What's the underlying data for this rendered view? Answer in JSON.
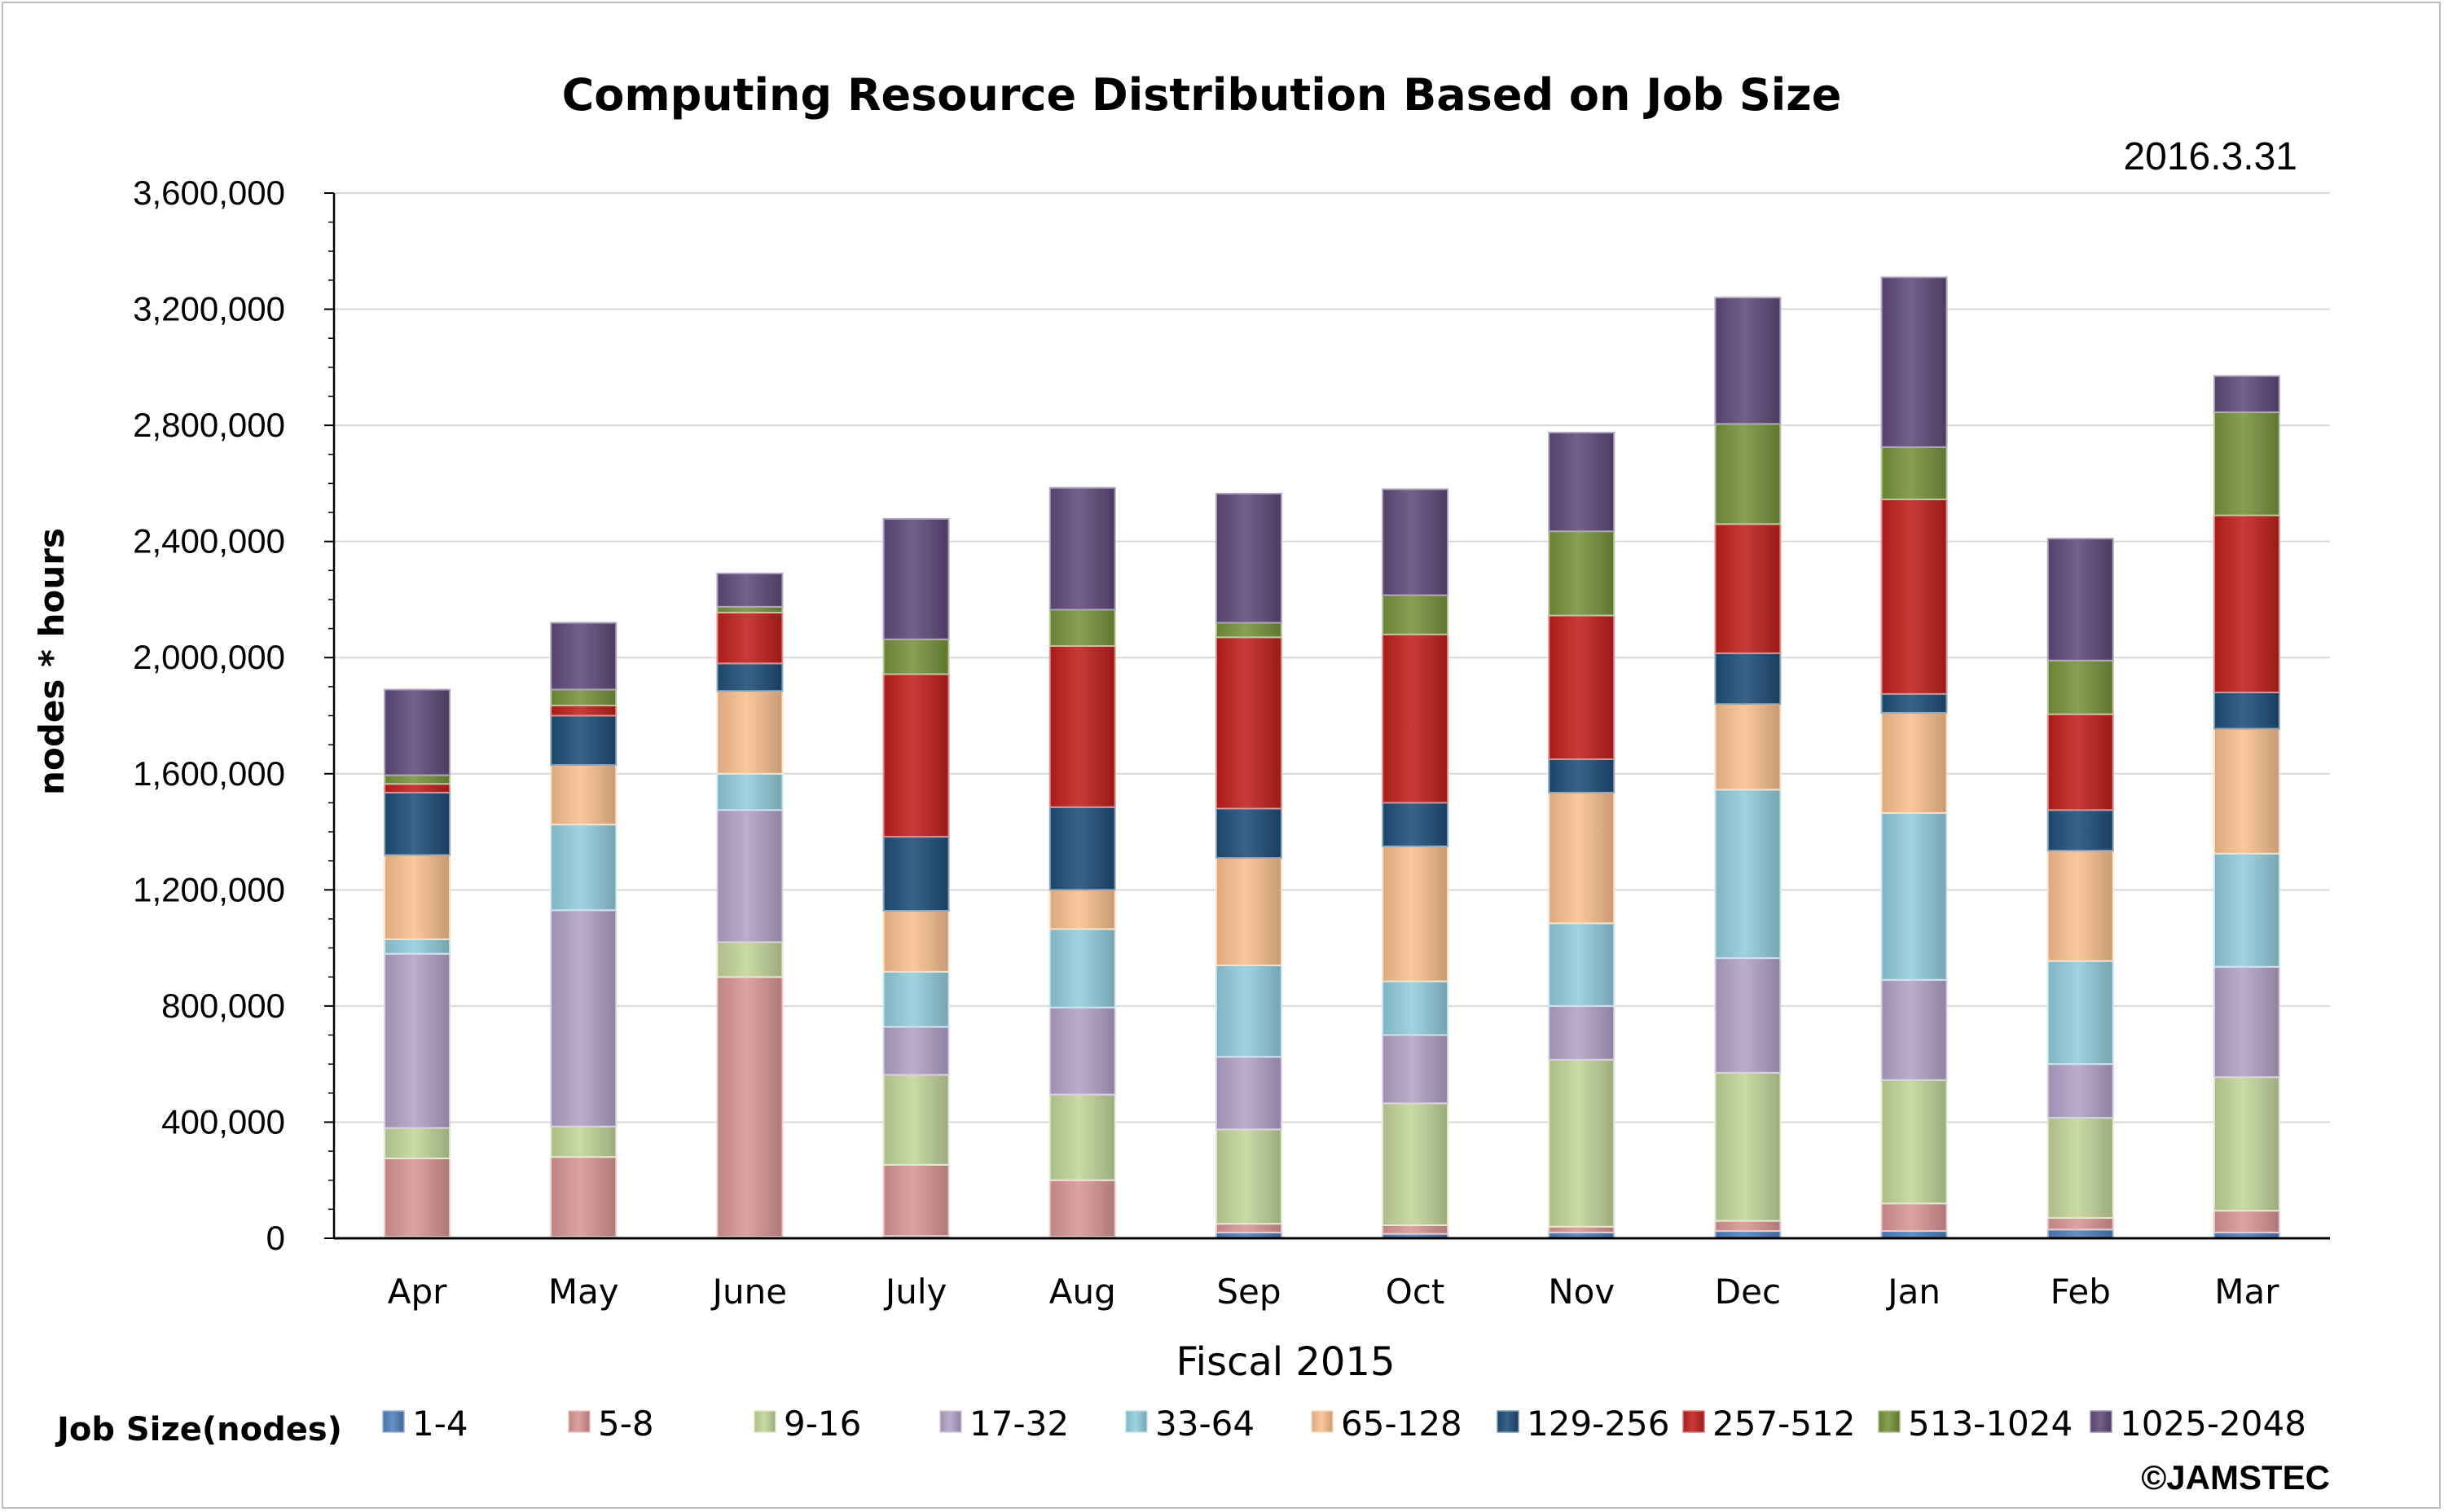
{
  "chart_data": {
    "type": "bar",
    "stacked": true,
    "title": "Computing Resource Distribution Based on Job Size",
    "date_label": "2016.3.31",
    "xlabel": "Fiscal 2015",
    "ylabel": "nodes * hours",
    "ylim": [
      0,
      3600000
    ],
    "yticks": [
      0,
      400000,
      800000,
      1200000,
      1600000,
      2000000,
      2400000,
      2800000,
      3200000,
      3600000
    ],
    "ytick_labels": [
      "0",
      "400,000",
      "800,000",
      "1,200,000",
      "1,600,000",
      "2,000,000",
      "2,400,000",
      "2,800,000",
      "3,200,000",
      "3,600,000"
    ],
    "grid": true,
    "legend_title": "Job Size(nodes)",
    "legend_position": "bottom",
    "copyright": "©JAMSTEC",
    "categories": [
      "Apr",
      "May",
      "June",
      "July",
      "Aug",
      "Sep",
      "Oct",
      "Nov",
      "Dec",
      "Jan",
      "Feb",
      "Mar"
    ],
    "series": [
      {
        "name": "1-4",
        "color": "#4f81bd",
        "values": [
          5000,
          5000,
          5000,
          8000,
          5000,
          20000,
          15000,
          20000,
          25000,
          25000,
          30000,
          20000
        ]
      },
      {
        "name": "5-8",
        "color": "#d99694",
        "values": [
          270000,
          275000,
          895000,
          245000,
          195000,
          30000,
          30000,
          20000,
          35000,
          95000,
          40000,
          75000
        ]
      },
      {
        "name": "9-16",
        "color": "#c3d69b",
        "values": [
          105000,
          105000,
          120000,
          310000,
          295000,
          325000,
          420000,
          575000,
          510000,
          425000,
          345000,
          460000
        ]
      },
      {
        "name": "17-32",
        "color": "#b3a2c7",
        "values": [
          600000,
          745000,
          455000,
          165000,
          300000,
          250000,
          235000,
          185000,
          395000,
          345000,
          185000,
          380000
        ]
      },
      {
        "name": "33-64",
        "color": "#93cddd",
        "values": [
          50000,
          295000,
          125000,
          190000,
          270000,
          315000,
          185000,
          285000,
          580000,
          575000,
          355000,
          390000
        ]
      },
      {
        "name": "65-128",
        "color": "#fac090",
        "values": [
          290000,
          205000,
          285000,
          210000,
          135000,
          370000,
          465000,
          450000,
          295000,
          345000,
          380000,
          430000
        ]
      },
      {
        "name": "129-256",
        "color": "#1f4e79",
        "values": [
          215000,
          170000,
          95000,
          255000,
          285000,
          170000,
          150000,
          115000,
          175000,
          65000,
          140000,
          125000
        ]
      },
      {
        "name": "257-512",
        "color": "#c0201e",
        "values": [
          30000,
          35000,
          175000,
          560000,
          555000,
          590000,
          580000,
          495000,
          445000,
          670000,
          330000,
          610000
        ]
      },
      {
        "name": "513-1024",
        "color": "#77933c",
        "values": [
          30000,
          55000,
          20000,
          120000,
          125000,
          50000,
          135000,
          290000,
          345000,
          180000,
          185000,
          355000
        ]
      },
      {
        "name": "1025-2048",
        "color": "#604a7b",
        "values": [
          295000,
          230000,
          115000,
          415000,
          420000,
          445000,
          365000,
          340000,
          435000,
          585000,
          420000,
          125000
        ]
      }
    ]
  }
}
